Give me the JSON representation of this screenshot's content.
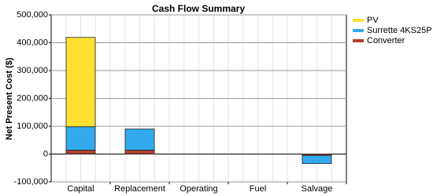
{
  "chart_data": {
    "type": "stacked-bar",
    "title": "Cash Flow Summary",
    "y_label": "Net Present Cost ($)",
    "categories": [
      "Capital",
      "Replacement",
      "Operating",
      "Fuel",
      "Salvage"
    ],
    "series": [
      {
        "name": "PV",
        "color": "#ffe033",
        "values": [
          321000,
          0,
          0,
          0,
          0
        ]
      },
      {
        "name": "Surrette 4KS25P",
        "color": "#33aaee",
        "values": [
          84000,
          76000,
          0,
          0,
          -29000
        ]
      },
      {
        "name": "Converter",
        "color": "#b04030",
        "values": [
          14000,
          14000,
          0,
          0,
          -5000
        ]
      }
    ],
    "ylim": [
      -100000,
      500000
    ],
    "yticks": [
      {
        "value": -100000,
        "label": "-100,000"
      },
      0,
      {
        "value": 100000,
        "label": "100,000"
      },
      {
        "value": 200000,
        "label": "200,000"
      },
      {
        "value": 300000,
        "label": "300,000"
      },
      {
        "value": 400000,
        "label": "400,000"
      },
      {
        "value": 500000,
        "label": "500,000"
      }
    ],
    "grid": true,
    "legend": "right"
  }
}
